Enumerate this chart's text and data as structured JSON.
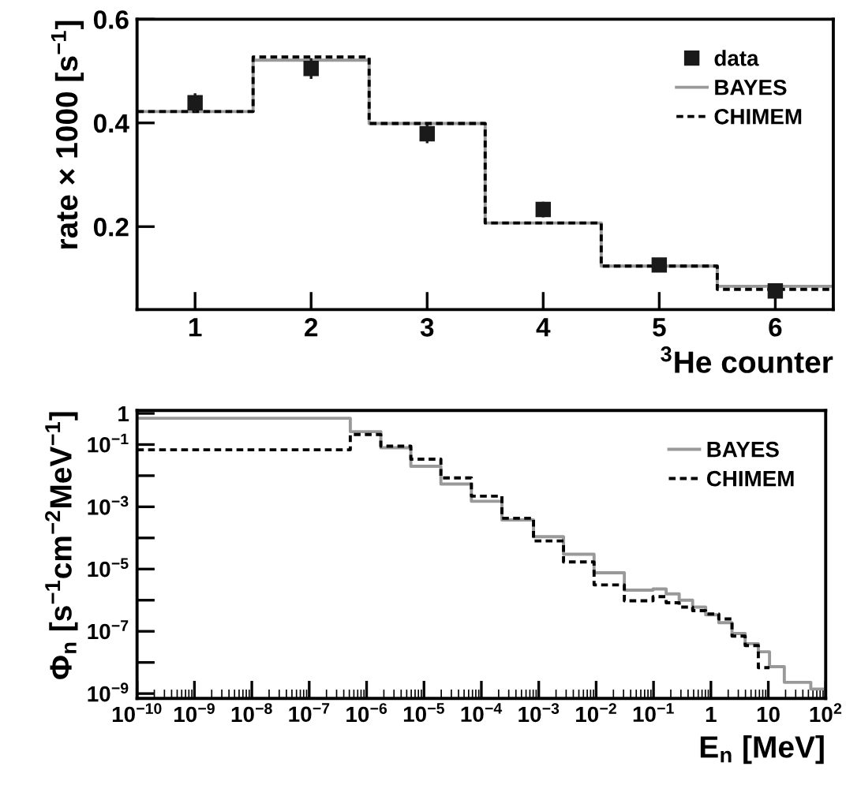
{
  "chart_data": [
    {
      "type": "step",
      "xlabel": "$^{3}$He counter",
      "ylabel": "rate × 1000 [s$^{−1}$]",
      "xlim": [
        0.5,
        6.5
      ],
      "xticks": [
        1,
        2,
        3,
        4,
        5,
        6
      ],
      "ylim": [
        0.04,
        0.6
      ],
      "yticks": [
        0.2,
        0.4,
        0.6
      ],
      "grid": false,
      "legend": "top right",
      "series": [
        {
          "name": "data",
          "type": "scatter",
          "marker": "square",
          "color": "#1a1a1a",
          "x": [
            1,
            2,
            3,
            4,
            5,
            6
          ],
          "values": [
            0.439,
            0.505,
            0.379,
            0.233,
            0.126,
            0.076
          ],
          "errors": [
            0.018,
            0.02,
            0.018,
            0.015,
            0.007,
            0.005
          ]
        },
        {
          "name": "BAYES",
          "type": "step",
          "line_style": "solid",
          "color": "#999999",
          "x": [
            0.5,
            1.5,
            2.5,
            3.5,
            4.5,
            5.5,
            6.5
          ],
          "values": [
            0.422,
            0.521,
            0.399,
            0.207,
            0.124,
            0.085,
            0.085
          ]
        },
        {
          "name": "CHIMEM",
          "type": "step",
          "line_style": "dashed",
          "color": "#000000",
          "x": [
            0.5,
            1.5,
            2.5,
            3.5,
            4.5,
            5.5,
            6.5
          ],
          "values": [
            0.422,
            0.527,
            0.399,
            0.207,
            0.124,
            0.079,
            0.079
          ]
        }
      ]
    },
    {
      "type": "step",
      "xlabel": "E$_{n}$ [MeV]",
      "ylabel": "Φ$_{n}$ [s$^{−1}$cm$^{−2}$MeV$^{−1}$]",
      "log": "xy",
      "xlim": [
        1e-10,
        100
      ],
      "xticks": [
        {
          "value": 1e-10,
          "label": "10$^{−10}$"
        },
        {
          "value": 1e-09,
          "label": "10$^{−9}$"
        },
        {
          "value": 1e-08,
          "label": "10$^{−8}$"
        },
        {
          "value": 1e-07,
          "label": "10$^{−7}$"
        },
        {
          "value": 1e-06,
          "label": "10$^{−6}$"
        },
        {
          "value": 1e-05,
          "label": "10$^{−5}$"
        },
        {
          "value": 0.0001,
          "label": "10$^{−4}$"
        },
        {
          "value": 0.001,
          "label": "10$^{−3}$"
        },
        {
          "value": 0.01,
          "label": "10$^{−2}$"
        },
        {
          "value": 0.1,
          "label": "10$^{−1}$"
        },
        1,
        10,
        {
          "value": 100,
          "label": "10$^{2}$"
        }
      ],
      "ylim": [
        7e-10,
        1.25
      ],
      "yticks": [
        1,
        {
          "value": 0.1,
          "label": "10$^{−1}$"
        },
        {
          "value": 0.01,
          "label": null
        },
        {
          "value": 0.001,
          "label": "10$^{−3}$"
        },
        {
          "value": 0.0001,
          "label": null
        },
        {
          "value": 1e-05,
          "label": "10$^{−5}$"
        },
        {
          "value": 1e-06,
          "label": null
        },
        {
          "value": 1e-07,
          "label": "10$^{−7}$"
        },
        {
          "value": 1e-08,
          "label": null
        },
        {
          "value": 1e-09,
          "label": "10$^{−9}$"
        }
      ],
      "grid": false,
      "legend": "top right",
      "series": [
        {
          "name": "BAYES",
          "line_style": "solid",
          "color": "#999999",
          "x": [
            1e-10,
            5.2e-07,
            1.77e-06,
            5.9e-06,
            1.97e-05,
            6.7e-05,
            0.000228,
            0.00081,
            0.0027,
            0.0092,
            0.031,
            0.098,
            0.166,
            0.28,
            0.48,
            0.81,
            1.37,
            2.33,
            3.95,
            6.7,
            10.5,
            19,
            55,
            100
          ],
          "values": [
            0.7,
            0.26,
            0.079,
            0.02,
            0.0054,
            0.0015,
            0.00038,
            0.00011,
            3e-05,
            7.6e-06,
            2.1e-06,
            2.3e-06,
            1.6e-06,
            1e-06,
            6e-07,
            3.4e-07,
            1.9e-07,
            8.5e-08,
            4e-08,
            2.2e-08,
            7.3e-09,
            2.3e-09,
            1.4e-09,
            1.4e-09
          ]
        },
        {
          "name": "CHIMEM",
          "line_style": "dashed",
          "color": "#000000",
          "x": [
            1e-10,
            5.2e-07,
            1.77e-06,
            5.9e-06,
            1.97e-05,
            6.7e-05,
            0.000228,
            0.00081,
            0.0027,
            0.0092,
            0.031,
            0.098,
            0.166,
            0.28,
            0.48,
            0.81,
            1.37,
            2.33,
            3.95,
            6.7,
            10.5
          ],
          "values": [
            0.068,
            0.21,
            0.089,
            0.034,
            0.0085,
            0.0022,
            0.00043,
            8e-05,
            1.7e-05,
            3.1e-06,
            9.6e-07,
            1.3e-06,
            8.3e-07,
            6e-07,
            4.6e-07,
            3.6e-07,
            2.5e-07,
            7e-08,
            3.5e-08,
            6.8e-09,
            6.8e-09
          ]
        }
      ]
    }
  ]
}
